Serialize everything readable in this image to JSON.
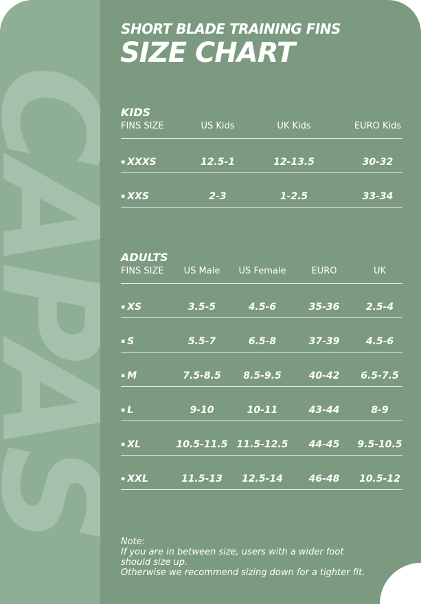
{
  "watermark": "CAPAS",
  "title": "SHORT BLADE TRAINING FINS",
  "subtitle": "SIZE CHART",
  "kids": {
    "heading": "KIDS",
    "columns": [
      "FINS SIZE",
      "US Kids",
      "UK Kids",
      "EURO Kids"
    ],
    "rows": [
      [
        "XXXS",
        "12.5-1",
        "12-13.5",
        "30-32"
      ],
      [
        "XXS",
        "2-3",
        "1-2.5",
        "33-34"
      ]
    ]
  },
  "adults": {
    "heading": "ADULTS",
    "columns": [
      "FINS SIZE",
      "US Male",
      "US Female",
      "EURO",
      "UK"
    ],
    "rows": [
      [
        "XS",
        "3.5-5",
        "4.5-6",
        "35-36",
        "2.5-4"
      ],
      [
        "S",
        "5.5-7",
        "6.5-8",
        "37-39",
        "4.5-6"
      ],
      [
        "M",
        "7.5-8.5",
        "8.5-9.5",
        "40-42",
        "6.5-7.5"
      ],
      [
        "L",
        "9-10",
        "10-11",
        "43-44",
        "8-9"
      ],
      [
        "XL",
        "10.5-11.5",
        "11.5-12.5",
        "44-45",
        "9.5-10.5"
      ],
      [
        "XXL",
        "11.5-13",
        "12.5-14",
        "46-48",
        "10.5-12"
      ]
    ]
  },
  "note": [
    "Note:",
    "If you are in between size, users with a wider foot",
    "should size up.",
    "Otherwise we recommend sizing down for a tighter fit."
  ],
  "colors": {
    "background": "#7b9a7f",
    "strip": "#8fae96",
    "text": "#ffffff"
  }
}
